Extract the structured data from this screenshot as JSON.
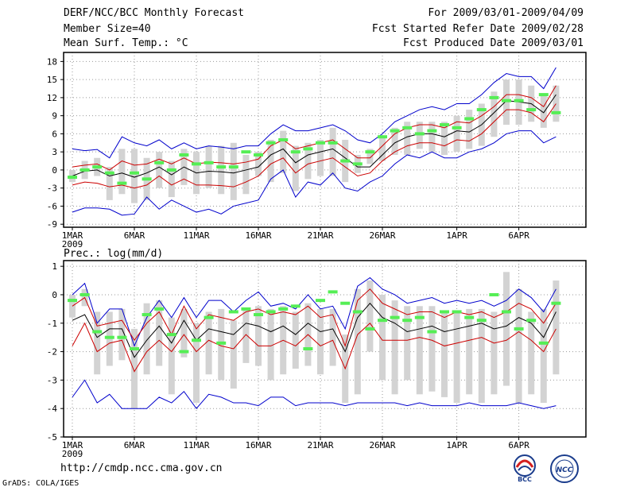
{
  "header": {
    "title": "DERF/NCC/BCC Monthly Forecast",
    "member_size": "Member Size=40",
    "variable": "Mean Surf. Temp.: °C",
    "period": "For 2009/03/01-2009/04/09",
    "started": "Fcst Started Refer Date 2009/02/28",
    "produced": "Fcst Produced Date 2009/03/01"
  },
  "footer": {
    "url": "http://cmdp.ncc.cma.gov.cn",
    "credit": "GrADS: COLA/IGES",
    "logo_left": "BCC",
    "logo_right": "NCC"
  },
  "colors": {
    "envelope": "#0000cc",
    "spread": "#cc0000",
    "mean": "#000000",
    "box": "#d3d3d3",
    "ensemble_mean_marker": "#55ee55"
  },
  "chart_data": [
    {
      "type": "line",
      "title": "Mean Surf. Temp.: °C",
      "xlabel": "",
      "ylabel": "",
      "ylim": [
        -9.5,
        19.5
      ],
      "yticks": [
        -9,
        -6,
        -3,
        0,
        3,
        6,
        9,
        12,
        15,
        18
      ],
      "grid": true,
      "x_days": [
        1,
        2,
        3,
        4,
        5,
        6,
        7,
        8,
        9,
        10,
        11,
        12,
        13,
        14,
        15,
        16,
        17,
        18,
        19,
        20,
        21,
        22,
        23,
        24,
        25,
        26,
        27,
        28,
        29,
        30,
        31,
        32,
        33,
        34,
        35,
        36,
        37,
        38,
        39,
        40
      ],
      "xtick_labels": [
        {
          "day": 1,
          "label": "1MAR"
        },
        {
          "day": 6,
          "label": "6MAR"
        },
        {
          "day": 11,
          "label": "11MAR"
        },
        {
          "day": 16,
          "label": "16MAR"
        },
        {
          "day": 21,
          "label": "21MAR"
        },
        {
          "day": 26,
          "label": "26MAR"
        },
        {
          "day": 32,
          "label": "1APR"
        },
        {
          "day": 37,
          "label": "6APR"
        }
      ],
      "year_label": "2009",
      "series": [
        {
          "name": "max",
          "color": "#0000cc",
          "values": [
            3.5,
            3.2,
            3.4,
            2.0,
            5.5,
            4.5,
            4.0,
            5.0,
            3.5,
            4.5,
            3.5,
            4.0,
            3.8,
            3.5,
            4.0,
            4.0,
            6.0,
            7.5,
            6.5,
            6.5,
            7.0,
            7.5,
            6.5,
            5.0,
            4.5,
            6.0,
            8.0,
            9.0,
            10.0,
            10.5,
            10.0,
            11.0,
            11.0,
            12.5,
            14.5,
            16.0,
            15.5,
            15.5,
            13.5,
            17.0
          ]
        },
        {
          "name": "upper",
          "color": "#cc0000",
          "values": [
            0.5,
            0.8,
            1.0,
            0.0,
            1.5,
            0.8,
            1.0,
            1.8,
            1.0,
            2.0,
            1.0,
            1.3,
            1.2,
            1.0,
            1.3,
            1.8,
            4.0,
            5.0,
            3.5,
            4.0,
            4.5,
            5.0,
            3.5,
            2.0,
            2.0,
            4.0,
            6.0,
            7.0,
            7.5,
            7.5,
            7.0,
            8.0,
            7.8,
            9.0,
            10.5,
            12.5,
            12.5,
            12.0,
            10.5,
            14.0
          ]
        },
        {
          "name": "mean",
          "color": "#000000",
          "values": [
            -1.0,
            -0.2,
            0.0,
            -1.0,
            -0.5,
            -1.2,
            -0.5,
            0.5,
            -0.8,
            0.5,
            -0.5,
            -0.2,
            -0.3,
            -0.5,
            0.0,
            0.5,
            2.5,
            3.5,
            1.2,
            2.5,
            3.0,
            3.5,
            2.0,
            0.5,
            0.5,
            2.5,
            4.5,
            5.5,
            6.0,
            6.0,
            5.5,
            6.5,
            6.3,
            7.5,
            9.5,
            11.5,
            11.3,
            11.0,
            9.5,
            12.5
          ]
        },
        {
          "name": "lower",
          "color": "#cc0000",
          "values": [
            -2.5,
            -2.0,
            -2.2,
            -2.8,
            -2.5,
            -3.0,
            -2.5,
            -1.0,
            -2.5,
            -1.5,
            -2.5,
            -2.5,
            -2.6,
            -2.8,
            -2.0,
            -1.0,
            1.0,
            2.0,
            -0.5,
            1.0,
            1.5,
            2.0,
            0.5,
            -1.0,
            -0.5,
            1.5,
            3.0,
            4.0,
            4.5,
            4.5,
            4.0,
            5.0,
            4.8,
            6.0,
            8.0,
            10.0,
            10.0,
            9.5,
            8.0,
            11.0
          ]
        },
        {
          "name": "min",
          "color": "#0000cc",
          "values": [
            -7.0,
            -6.3,
            -6.3,
            -6.5,
            -7.5,
            -7.3,
            -4.5,
            -6.5,
            -5.0,
            -6.0,
            -7.0,
            -6.5,
            -7.3,
            -6.0,
            -5.5,
            -5.0,
            -1.5,
            0.0,
            -4.5,
            -2.0,
            -2.5,
            -0.5,
            -3.0,
            -3.5,
            -2.0,
            -1.0,
            1.0,
            2.5,
            2.0,
            3.0,
            2.0,
            2.0,
            3.0,
            3.5,
            4.5,
            6.0,
            6.5,
            6.5,
            4.5,
            5.5
          ]
        }
      ],
      "boxes": {
        "low": [
          -2,
          -1.5,
          -1,
          -5,
          -4,
          -5.5,
          -5,
          -3,
          -4.5,
          -2.5,
          -4,
          -3,
          -4,
          -5,
          -4,
          -1,
          -2,
          -0.5,
          -3.5,
          -1.5,
          -1,
          -1,
          -2,
          -0.5,
          1,
          1.5,
          2.5,
          2.5,
          3.5,
          3,
          2.5,
          3,
          3.5,
          4,
          5.5,
          7.5,
          7.5,
          8,
          7,
          8
        ],
        "high": [
          0,
          1.5,
          2,
          0.5,
          3.5,
          3.5,
          2,
          3,
          1.5,
          3.5,
          3,
          4,
          4,
          4.5,
          2.5,
          3,
          5,
          6.5,
          4,
          4.5,
          5,
          7,
          5,
          2.5,
          3.5,
          5.5,
          7,
          8,
          8,
          8,
          8,
          9,
          10,
          11,
          13,
          15,
          15,
          14,
          12.5,
          14
        ],
        "ens_mean": [
          -1.2,
          0.0,
          0.5,
          -0.5,
          -2.2,
          -0.5,
          -1.5,
          1.2,
          0.0,
          2.5,
          1.0,
          1.2,
          0.5,
          0.5,
          3.0,
          2.5,
          4.5,
          5.0,
          3.0,
          3.5,
          4.5,
          4.5,
          1.5,
          1.0,
          3.0,
          5.5,
          6.5,
          7.0,
          6.0,
          6.5,
          7.5,
          7.0,
          8.5,
          10.0,
          12.0,
          11.5,
          11.5,
          10.0,
          12.5,
          9.5
        ]
      }
    },
    {
      "type": "line",
      "title": "Prec.: log(mm/d)",
      "xlabel": "",
      "ylabel": "",
      "ylim": [
        -5,
        1.2
      ],
      "yticks": [
        -5,
        -4,
        -3,
        -2,
        -1,
        0,
        1
      ],
      "grid": true,
      "x_days": [
        1,
        2,
        3,
        4,
        5,
        6,
        7,
        8,
        9,
        10,
        11,
        12,
        13,
        14,
        15,
        16,
        17,
        18,
        19,
        20,
        21,
        22,
        23,
        24,
        25,
        26,
        27,
        28,
        29,
        30,
        31,
        32,
        33,
        34,
        35,
        36,
        37,
        38,
        39,
        40
      ],
      "xtick_labels": [
        {
          "day": 1,
          "label": "1MAR"
        },
        {
          "day": 6,
          "label": "6MAR"
        },
        {
          "day": 11,
          "label": "11MAR"
        },
        {
          "day": 16,
          "label": "16MAR"
        },
        {
          "day": 21,
          "label": "21MAR"
        },
        {
          "day": 26,
          "label": "26MAR"
        },
        {
          "day": 32,
          "label": "1APR"
        },
        {
          "day": 37,
          "label": "6APR"
        }
      ],
      "year_label": "2009",
      "series": [
        {
          "name": "max",
          "color": "#0000cc",
          "values": [
            0.0,
            0.4,
            -1.0,
            -0.5,
            -0.5,
            -1.8,
            -0.8,
            -0.2,
            -0.8,
            -0.1,
            -0.8,
            -0.2,
            -0.2,
            -0.6,
            -0.2,
            0.1,
            -0.4,
            -0.3,
            -0.5,
            0.0,
            -0.5,
            -0.4,
            -1.2,
            0.3,
            0.6,
            0.2,
            0.0,
            -0.3,
            -0.2,
            -0.1,
            -0.3,
            -0.2,
            -0.3,
            -0.2,
            -0.4,
            -0.2,
            0.2,
            -0.1,
            -0.6,
            0.2
          ]
        },
        {
          "name": "upper",
          "color": "#cc0000",
          "values": [
            -0.4,
            -0.1,
            -1.1,
            -1.0,
            -0.9,
            -1.6,
            -1.0,
            -0.6,
            -1.4,
            -0.4,
            -1.2,
            -0.7,
            -0.8,
            -0.9,
            -0.6,
            -0.5,
            -0.7,
            -0.6,
            -0.7,
            -0.4,
            -0.8,
            -0.7,
            -1.8,
            -0.2,
            0.2,
            -0.3,
            -0.5,
            -0.7,
            -0.6,
            -0.6,
            -0.8,
            -0.6,
            -0.7,
            -0.6,
            -0.8,
            -0.6,
            -0.3,
            -0.5,
            -1.0,
            -0.3
          ]
        },
        {
          "name": "mean",
          "color": "#000000",
          "values": [
            -0.9,
            -0.7,
            -1.5,
            -1.2,
            -1.2,
            -2.2,
            -1.6,
            -1.1,
            -1.7,
            -0.9,
            -1.6,
            -1.2,
            -1.3,
            -1.4,
            -1.0,
            -1.1,
            -1.3,
            -1.1,
            -1.4,
            -1.0,
            -1.3,
            -1.2,
            -2.0,
            -0.8,
            -0.3,
            -0.8,
            -1.0,
            -1.3,
            -1.2,
            -1.1,
            -1.3,
            -1.2,
            -1.1,
            -1.0,
            -1.2,
            -1.1,
            -0.8,
            -1.0,
            -1.5,
            -0.6
          ]
        },
        {
          "name": "lower",
          "color": "#cc0000",
          "values": [
            -1.8,
            -1.0,
            -2.0,
            -1.7,
            -1.6,
            -2.7,
            -2.0,
            -1.6,
            -2.0,
            -1.4,
            -2.0,
            -1.6,
            -1.8,
            -1.9,
            -1.4,
            -1.8,
            -1.8,
            -1.6,
            -1.8,
            -1.4,
            -1.8,
            -1.6,
            -2.6,
            -1.4,
            -1.0,
            -1.6,
            -1.6,
            -1.6,
            -1.5,
            -1.6,
            -1.8,
            -1.7,
            -1.6,
            -1.5,
            -1.7,
            -1.6,
            -1.3,
            -1.6,
            -2.0,
            -1.2
          ]
        },
        {
          "name": "min",
          "color": "#0000cc",
          "values": [
            -3.6,
            -3.0,
            -3.8,
            -3.5,
            -4.0,
            -4.0,
            -4.0,
            -3.6,
            -3.8,
            -3.4,
            -4.0,
            -3.5,
            -3.6,
            -3.8,
            -3.8,
            -3.9,
            -3.6,
            -3.6,
            -3.9,
            -3.8,
            -3.8,
            -3.8,
            -3.9,
            -3.8,
            -3.8,
            -3.8,
            -3.8,
            -3.9,
            -3.8,
            -3.9,
            -3.9,
            -3.9,
            -3.8,
            -3.9,
            -3.9,
            -3.9,
            -3.8,
            -3.9,
            -4.0,
            -3.9
          ]
        }
      ],
      "boxes": {
        "low": [
          -0.8,
          -0.4,
          -2.8,
          -2.5,
          -2.3,
          -4.0,
          -2.8,
          -2.5,
          -3.5,
          -2.2,
          -3.8,
          -2.8,
          -3.0,
          -3.3,
          -2.4,
          -2.5,
          -3.0,
          -2.8,
          -2.6,
          -2.5,
          -2.8,
          -2.5,
          -3.8,
          -3.5,
          -2.0,
          -3.0,
          -3.5,
          -3.0,
          -3.5,
          -3.4,
          -3.6,
          -3.8,
          -3.5,
          -3.8,
          -3.5,
          -3.2,
          -3.8,
          -3.5,
          -3.8,
          -2.8
        ],
        "high": [
          0.0,
          0.2,
          -0.6,
          -0.6,
          -0.5,
          -1.2,
          -0.3,
          -0.2,
          -0.8,
          -0.5,
          -1.0,
          -0.6,
          -0.5,
          -0.9,
          -0.5,
          -0.4,
          -0.5,
          -0.4,
          -0.6,
          -0.3,
          -0.5,
          -0.5,
          -1.4,
          0.2,
          0.5,
          0.0,
          -0.2,
          -0.4,
          -0.4,
          -0.4,
          -0.6,
          -0.6,
          -0.5,
          -0.5,
          -0.6,
          0.8,
          0.2,
          -0.6,
          -0.5,
          0.5
        ],
        "ens_mean": [
          -0.2,
          0.0,
          -1.3,
          -1.5,
          -1.5,
          -1.9,
          -0.7,
          -0.5,
          -1.4,
          -2.0,
          -1.6,
          -0.8,
          -1.7,
          -0.6,
          -0.5,
          -0.7,
          -0.6,
          -0.5,
          -0.4,
          -1.9,
          -0.2,
          0.1,
          -0.3,
          -0.6,
          -1.2,
          -0.9,
          -0.8,
          -0.9,
          -0.8,
          -1.3,
          -0.6,
          -0.6,
          -0.8,
          -0.9,
          0.0,
          -0.6,
          -1.2,
          -0.9,
          -1.7,
          -0.3
        ]
      }
    }
  ]
}
